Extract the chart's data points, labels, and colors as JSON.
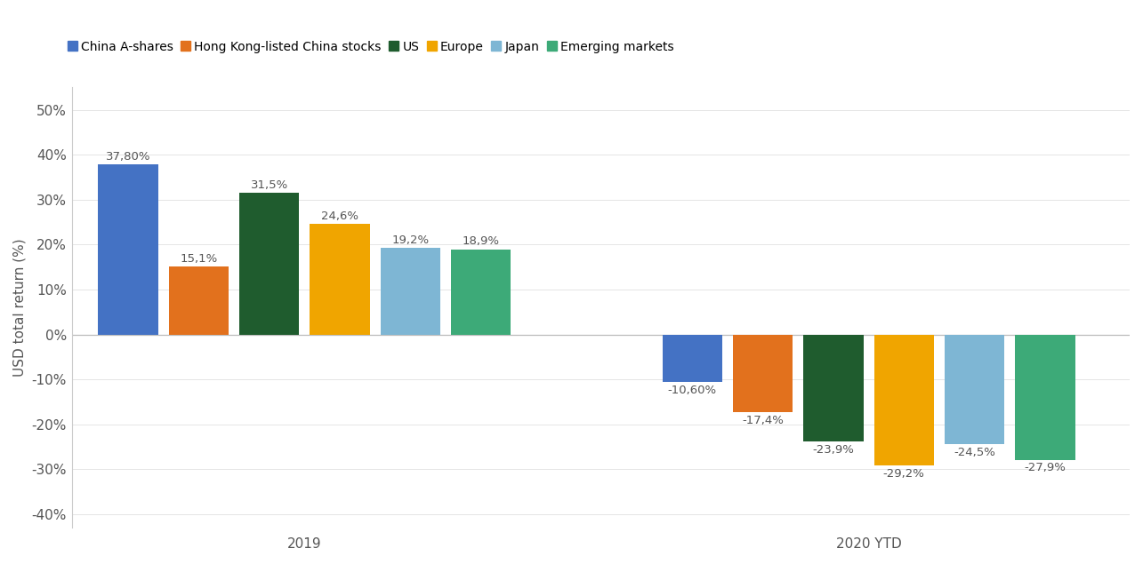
{
  "ylabel": "USD total return (%)",
  "groups": [
    "2019",
    "2020 YTD"
  ],
  "categories": [
    "China A-shares",
    "Hong Kong-listed China stocks",
    "US",
    "Europe",
    "Japan",
    "Emerging markets"
  ],
  "colors": [
    "#4472C4",
    "#E2711D",
    "#1F5C2E",
    "#F0A500",
    "#7EB6D4",
    "#3DAA78"
  ],
  "values_2019": [
    37.8,
    15.1,
    31.5,
    24.6,
    19.2,
    18.9
  ],
  "values_2020": [
    -10.6,
    -17.4,
    -23.9,
    -29.2,
    -24.5,
    -27.9
  ],
  "labels_2019": [
    "37,80%",
    "15,1%",
    "31,5%",
    "24,6%",
    "19,2%",
    "18,9%"
  ],
  "labels_2020": [
    "-10,60%",
    "-17,4%",
    "-23,9%",
    "-29,2%",
    "-24,5%",
    "-27,9%"
  ],
  "ylim": [
    -43,
    55
  ],
  "yticks": [
    -40,
    -30,
    -20,
    -10,
    0,
    10,
    20,
    30,
    40,
    50
  ],
  "ytick_labels": [
    "-40%",
    "-30%",
    "-20%",
    "-10%",
    "0%",
    "10%",
    "20%",
    "30%",
    "40%",
    "50%"
  ],
  "background_color": "#FFFFFF",
  "label_fontsize": 9.5,
  "axis_fontsize": 11,
  "legend_fontsize": 10
}
